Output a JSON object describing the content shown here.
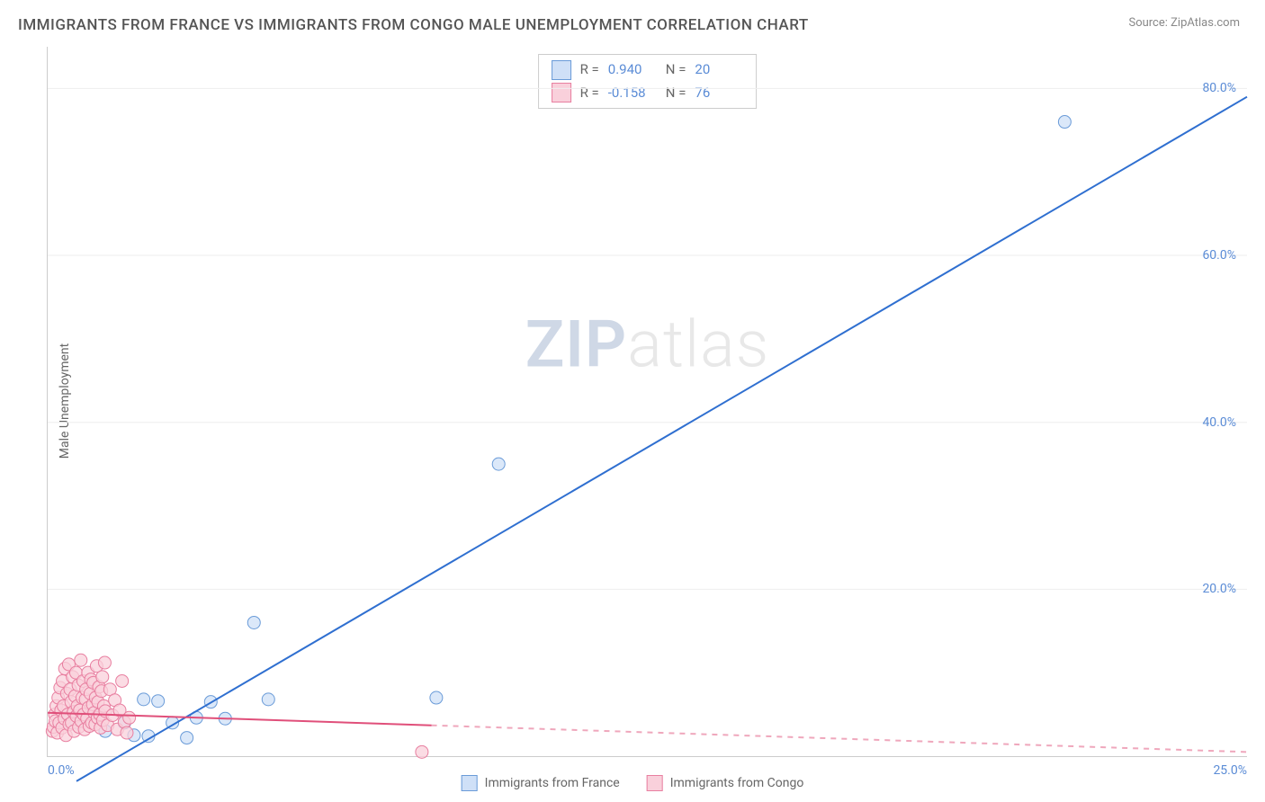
{
  "title": "IMMIGRANTS FROM FRANCE VS IMMIGRANTS FROM CONGO MALE UNEMPLOYMENT CORRELATION CHART",
  "source": "Source: ZipAtlas.com",
  "ylabel": "Male Unemployment",
  "watermark_a": "ZIP",
  "watermark_b": "atlas",
  "chart": {
    "type": "scatter",
    "xlim": [
      0,
      25
    ],
    "ylim": [
      0,
      85
    ],
    "xticks": [
      {
        "v": 0,
        "label": "0.0%"
      },
      {
        "v": 25,
        "label": "25.0%"
      }
    ],
    "yticks": [
      {
        "v": 20,
        "label": "20.0%"
      },
      {
        "v": 40,
        "label": "40.0%"
      },
      {
        "v": 60,
        "label": "60.0%"
      },
      {
        "v": 80,
        "label": "80.0%"
      }
    ],
    "grid_color": "#eeeeee",
    "axis_color": "#cccccc",
    "background_color": "#ffffff",
    "series": [
      {
        "name": "Immigrants from France",
        "short": "france",
        "marker_fill": "#cfe0f7",
        "marker_stroke": "#6a9bd8",
        "marker_opacity": 0.75,
        "marker_r": 7,
        "line_color": "#2f6fd0",
        "line_width": 2,
        "R_label": "R =",
        "R": "0.940",
        "N_label": "N =",
        "N": "20",
        "trend": {
          "x1": 0.6,
          "y1": -3,
          "x2": 25,
          "y2": 79
        },
        "points": [
          [
            0.4,
            4.2
          ],
          [
            0.6,
            4.0
          ],
          [
            0.8,
            4.5
          ],
          [
            1.0,
            5.2
          ],
          [
            1.2,
            3.0
          ],
          [
            1.6,
            4.0
          ],
          [
            1.8,
            2.5
          ],
          [
            2.0,
            6.8
          ],
          [
            2.1,
            2.4
          ],
          [
            2.3,
            6.6
          ],
          [
            2.6,
            4.0
          ],
          [
            2.9,
            2.2
          ],
          [
            3.1,
            4.6
          ],
          [
            3.4,
            6.5
          ],
          [
            3.7,
            4.5
          ],
          [
            4.3,
            16.0
          ],
          [
            4.6,
            6.8
          ],
          [
            8.1,
            7.0
          ],
          [
            9.4,
            35.0
          ],
          [
            21.2,
            76.0
          ]
        ]
      },
      {
        "name": "Immigrants from Congo",
        "short": "congo",
        "marker_fill": "#f9d0db",
        "marker_stroke": "#e87fa0",
        "marker_opacity": 0.75,
        "marker_r": 7,
        "line_color": "#e04f7a",
        "line_width": 2,
        "line_dash_after": 8,
        "R_label": "R =",
        "R": "-0.158",
        "N_label": "N =",
        "N": "76",
        "trend": {
          "x1": 0,
          "y1": 5.2,
          "x2": 25,
          "y2": 0.5
        },
        "points": [
          [
            0.1,
            3.0
          ],
          [
            0.12,
            3.5
          ],
          [
            0.15,
            5.0
          ],
          [
            0.16,
            4.2
          ],
          [
            0.18,
            6.0
          ],
          [
            0.2,
            2.8
          ],
          [
            0.22,
            7.0
          ],
          [
            0.24,
            4.0
          ],
          [
            0.26,
            8.2
          ],
          [
            0.28,
            5.5
          ],
          [
            0.3,
            3.4
          ],
          [
            0.31,
            9.0
          ],
          [
            0.33,
            6.0
          ],
          [
            0.35,
            4.5
          ],
          [
            0.36,
            10.5
          ],
          [
            0.38,
            2.5
          ],
          [
            0.4,
            7.5
          ],
          [
            0.42,
            5.0
          ],
          [
            0.44,
            11.0
          ],
          [
            0.45,
            3.8
          ],
          [
            0.47,
            8.0
          ],
          [
            0.49,
            6.5
          ],
          [
            0.5,
            4.0
          ],
          [
            0.52,
            9.5
          ],
          [
            0.54,
            5.3
          ],
          [
            0.55,
            3.0
          ],
          [
            0.57,
            7.2
          ],
          [
            0.59,
            10.0
          ],
          [
            0.6,
            4.8
          ],
          [
            0.62,
            6.0
          ],
          [
            0.64,
            8.5
          ],
          [
            0.65,
            3.5
          ],
          [
            0.67,
            5.5
          ],
          [
            0.69,
            11.5
          ],
          [
            0.7,
            4.2
          ],
          [
            0.72,
            7.0
          ],
          [
            0.74,
            9.0
          ],
          [
            0.75,
            5.0
          ],
          [
            0.77,
            3.2
          ],
          [
            0.79,
            6.8
          ],
          [
            0.8,
            8.0
          ],
          [
            0.82,
            4.5
          ],
          [
            0.84,
            10.0
          ],
          [
            0.85,
            5.8
          ],
          [
            0.87,
            3.6
          ],
          [
            0.89,
            7.5
          ],
          [
            0.9,
            9.2
          ],
          [
            0.92,
            4.0
          ],
          [
            0.94,
            6.2
          ],
          [
            0.95,
            8.8
          ],
          [
            0.97,
            5.2
          ],
          [
            0.99,
            3.8
          ],
          [
            1.0,
            7.0
          ],
          [
            1.02,
            10.8
          ],
          [
            1.04,
            4.6
          ],
          [
            1.05,
            6.5
          ],
          [
            1.07,
            8.3
          ],
          [
            1.09,
            5.0
          ],
          [
            1.1,
            3.4
          ],
          [
            1.12,
            7.8
          ],
          [
            1.14,
            9.5
          ],
          [
            1.15,
            4.3
          ],
          [
            1.17,
            6.0
          ],
          [
            1.19,
            11.2
          ],
          [
            1.2,
            5.4
          ],
          [
            1.25,
            3.7
          ],
          [
            1.3,
            8.0
          ],
          [
            1.35,
            4.9
          ],
          [
            1.4,
            6.7
          ],
          [
            1.45,
            3.2
          ],
          [
            1.5,
            5.5
          ],
          [
            1.55,
            9.0
          ],
          [
            1.6,
            4.1
          ],
          [
            1.65,
            2.8
          ],
          [
            1.7,
            4.6
          ],
          [
            7.8,
            0.5
          ]
        ]
      }
    ]
  },
  "legend_bottom": [
    {
      "label": "Immigrants from France",
      "fill": "#cfe0f7",
      "stroke": "#6a9bd8"
    },
    {
      "label": "Immigrants from Congo",
      "fill": "#f9d0db",
      "stroke": "#e87fa0"
    }
  ]
}
